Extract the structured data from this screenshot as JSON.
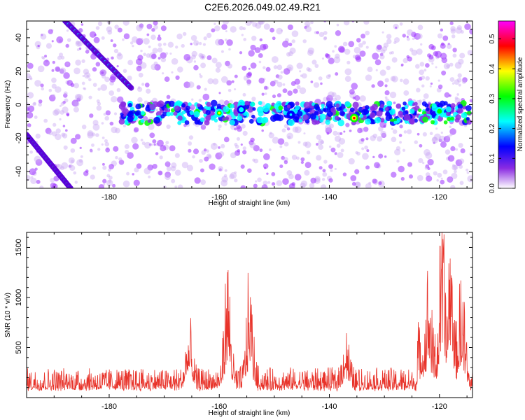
{
  "title": "C2E6.2026.049.02.49.R21",
  "chart_data": [
    {
      "type": "heatmap",
      "title": "C2E6.2026.049.02.49.R21",
      "xlabel": "Height of straight line (km)",
      "ylabel": "Frequency (Hz)",
      "xlim": [
        -195,
        -114
      ],
      "ylim": [
        -50,
        50
      ],
      "x_ticks": [
        -180,
        -160,
        -140,
        -120
      ],
      "y_ticks": [
        -40,
        -20,
        0,
        20,
        40
      ],
      "colorbar": {
        "label": "Normalized spectral amplitude",
        "range": [
          0,
          0.56
        ],
        "ticks": [
          0.0,
          0.1,
          0.2,
          0.3,
          0.4,
          0.5
        ],
        "colormap": [
          "#ffffff",
          "#8a2be2",
          "#0000ff",
          "#00ffff",
          "#00ff00",
          "#ffff00",
          "#ff0000",
          "#ff00ff"
        ]
      },
      "features": [
        {
          "kind": "descending streak",
          "from": {
            "x": -188,
            "y": 50
          },
          "to": {
            "x": -176,
            "y": 10
          }
        },
        {
          "kind": "descending streak",
          "from": {
            "x": -195,
            "y": -18
          },
          "to": {
            "x": -187,
            "y": -50
          }
        },
        {
          "kind": "horizontal band",
          "x_range": [
            -178,
            -114
          ],
          "y_center": -5,
          "peaks": [
            {
              "x": -160,
              "y": -5,
              "value": 0.38
            },
            {
              "x": -135.5,
              "y": -8,
              "value": 0.5
            },
            {
              "x": -120,
              "y": -4,
              "value": 0.35
            },
            {
              "x": -156,
              "y": -3,
              "value": 0.25
            },
            {
              "x": -147,
              "y": -6,
              "value": 0.22
            }
          ]
        }
      ]
    },
    {
      "type": "line",
      "xlabel": "Height of straight line (km)",
      "ylabel": "SNR (10 * v/v)",
      "xlim": [
        -195,
        -114
      ],
      "ylim": [
        0,
        1650
      ],
      "x_ticks": [
        -180,
        -160,
        -140,
        -120
      ],
      "y_ticks": [
        500,
        1000,
        1500
      ],
      "color": "#e8332a",
      "baseline": 250,
      "peaks": [
        {
          "x": -165.5,
          "y": 700
        },
        {
          "x": -158.5,
          "y": 1220
        },
        {
          "x": -154.5,
          "y": 1120
        },
        {
          "x": -137,
          "y": 650
        },
        {
          "x": -122,
          "y": 1200
        },
        {
          "x": -119.5,
          "y": 1640
        },
        {
          "x": -118,
          "y": 1600
        },
        {
          "x": -116,
          "y": 1150
        }
      ]
    }
  ]
}
